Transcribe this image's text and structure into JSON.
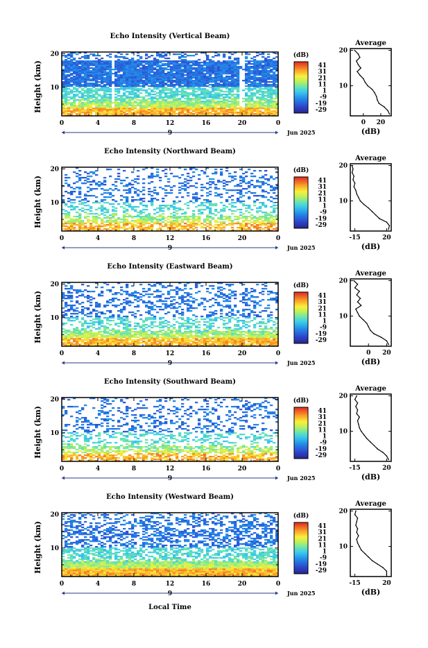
{
  "page": {
    "xlabel": "Local Time",
    "date_label": "Jun 2025",
    "day_marker": "9"
  },
  "chart_data": [
    {
      "type": "heatmap",
      "title": "Echo Intensity (Vertical Beam)",
      "ylabel": "Height (km)",
      "x_ticks": [
        "0",
        "4",
        "8",
        "12",
        "16",
        "20",
        "0"
      ],
      "y_ticks": [
        "20",
        "10"
      ],
      "xlim": [
        0,
        24
      ],
      "ylim": [
        1.5,
        20.5
      ],
      "colorbar": {
        "label": "(dB)",
        "ticks": [
          "41",
          "31",
          "21",
          "11",
          "1",
          "-9",
          "-19",
          "-29"
        ]
      },
      "profile": {
        "title": "Average",
        "xlabel": "(dB)",
        "xlim": [
          -15,
          32
        ],
        "x_ticks": [
          "0",
          "20"
        ],
        "y_ticks": [
          "20",
          "10"
        ],
        "heights": [
          2,
          3,
          4,
          5,
          6,
          7,
          8,
          9,
          10,
          11,
          12,
          13,
          14,
          15,
          16,
          17,
          18,
          19,
          20
        ],
        "values": [
          30,
          28,
          24,
          18,
          16,
          15,
          13,
          10,
          5,
          2,
          0,
          -4,
          -7,
          -3,
          -6,
          -8,
          -4,
          -6,
          -10
        ]
      }
    },
    {
      "type": "heatmap",
      "title": "Echo Intensity (Northward Beam)",
      "ylabel": "Height (km)",
      "x_ticks": [
        "0",
        "4",
        "8",
        "12",
        "16",
        "20",
        "0"
      ],
      "y_ticks": [
        "20",
        "10"
      ],
      "xlim": [
        0,
        24
      ],
      "ylim": [
        1.5,
        20.5
      ],
      "colorbar": {
        "label": "(dB)",
        "ticks": [
          "41",
          "31",
          "21",
          "11",
          "1",
          "-9",
          "-19",
          "-29"
        ]
      },
      "profile": {
        "title": "Average",
        "xlabel": "(dB)",
        "xlim": [
          -20,
          25
        ],
        "x_ticks": [
          "-15",
          "20"
        ],
        "y_ticks": [
          "20",
          "10"
        ],
        "heights": [
          2,
          3,
          4,
          5,
          6,
          7,
          8,
          9,
          10,
          11,
          12,
          13,
          14,
          15,
          16,
          17,
          18,
          19,
          20
        ],
        "values": [
          22,
          23,
          20,
          12,
          8,
          4,
          0,
          -5,
          -9,
          -11,
          -13,
          -14,
          -16,
          -15,
          -17,
          -16,
          -18,
          -17,
          -18
        ]
      }
    },
    {
      "type": "heatmap",
      "title": "Echo Intensity (Eastward Beam)",
      "ylabel": "Height (km)",
      "x_ticks": [
        "0",
        "4",
        "8",
        "12",
        "16",
        "20",
        "0"
      ],
      "y_ticks": [
        "20",
        "10"
      ],
      "xlim": [
        0,
        24
      ],
      "ylim": [
        1.5,
        20.5
      ],
      "colorbar": {
        "label": "(dB)",
        "ticks": [
          "41",
          "31",
          "21",
          "11",
          "1",
          "-9",
          "-19",
          "-29"
        ]
      },
      "profile": {
        "title": "Average",
        "xlabel": "(dB)",
        "xlim": [
          -20,
          25
        ],
        "x_ticks": [
          "0",
          "20"
        ],
        "y_ticks": [
          "20",
          "10"
        ],
        "heights": [
          2,
          3,
          4,
          5,
          6,
          7,
          8,
          9,
          10,
          11,
          12,
          13,
          14,
          15,
          16,
          17,
          18,
          19,
          20
        ],
        "values": [
          22,
          20,
          14,
          6,
          2,
          0,
          -2,
          -6,
          -10,
          -12,
          -14,
          -8,
          -12,
          -9,
          -13,
          -10,
          -15,
          -12,
          -16
        ]
      }
    },
    {
      "type": "heatmap",
      "title": "Echo Intensity (Southward Beam)",
      "ylabel": "Height (km)",
      "x_ticks": [
        "0",
        "4",
        "8",
        "12",
        "16",
        "20",
        "0"
      ],
      "y_ticks": [
        "20",
        "10"
      ],
      "xlim": [
        0,
        24
      ],
      "ylim": [
        1.5,
        20.5
      ],
      "colorbar": {
        "label": "(dB)",
        "ticks": [
          "41",
          "31",
          "21",
          "11",
          "1",
          "-9",
          "-19",
          "-29"
        ]
      },
      "profile": {
        "title": "Average",
        "xlabel": "(dB)",
        "xlim": [
          -20,
          25
        ],
        "x_ticks": [
          "-15",
          "20"
        ],
        "y_ticks": [
          "20",
          "10"
        ],
        "heights": [
          2,
          3,
          4,
          5,
          6,
          7,
          8,
          9,
          10,
          11,
          12,
          13,
          14,
          15,
          16,
          17,
          18,
          19,
          20
        ],
        "values": [
          22,
          20,
          16,
          10,
          6,
          2,
          -2,
          -5,
          -8,
          -10,
          -11,
          -12,
          -10,
          -13,
          -12,
          -14,
          -12,
          -15,
          -13
        ]
      }
    },
    {
      "type": "heatmap",
      "title": "Echo Intensity (Westward Beam)",
      "ylabel": "Height (km)",
      "x_ticks": [
        "0",
        "4",
        "8",
        "12",
        "16",
        "20",
        "0"
      ],
      "y_ticks": [
        "20",
        "10"
      ],
      "xlim": [
        0,
        24
      ],
      "ylim": [
        1.5,
        20.5
      ],
      "colorbar": {
        "label": "(dB)",
        "ticks": [
          "41",
          "31",
          "21",
          "11",
          "1",
          "-9",
          "-19",
          "-29"
        ]
      },
      "profile": {
        "title": "Average",
        "xlabel": "(dB)",
        "xlim": [
          -20,
          25
        ],
        "x_ticks": [
          "-15",
          "20"
        ],
        "y_ticks": [
          "20",
          "10"
        ],
        "heights": [
          2,
          3,
          4,
          5,
          6,
          7,
          8,
          9,
          10,
          11,
          12,
          13,
          14,
          15,
          16,
          17,
          18,
          19,
          20
        ],
        "values": [
          20,
          20,
          16,
          10,
          4,
          0,
          -4,
          -8,
          -10,
          -12,
          -13,
          -11,
          -13,
          -12,
          -14,
          -13,
          -12,
          -15,
          -14
        ]
      }
    }
  ]
}
